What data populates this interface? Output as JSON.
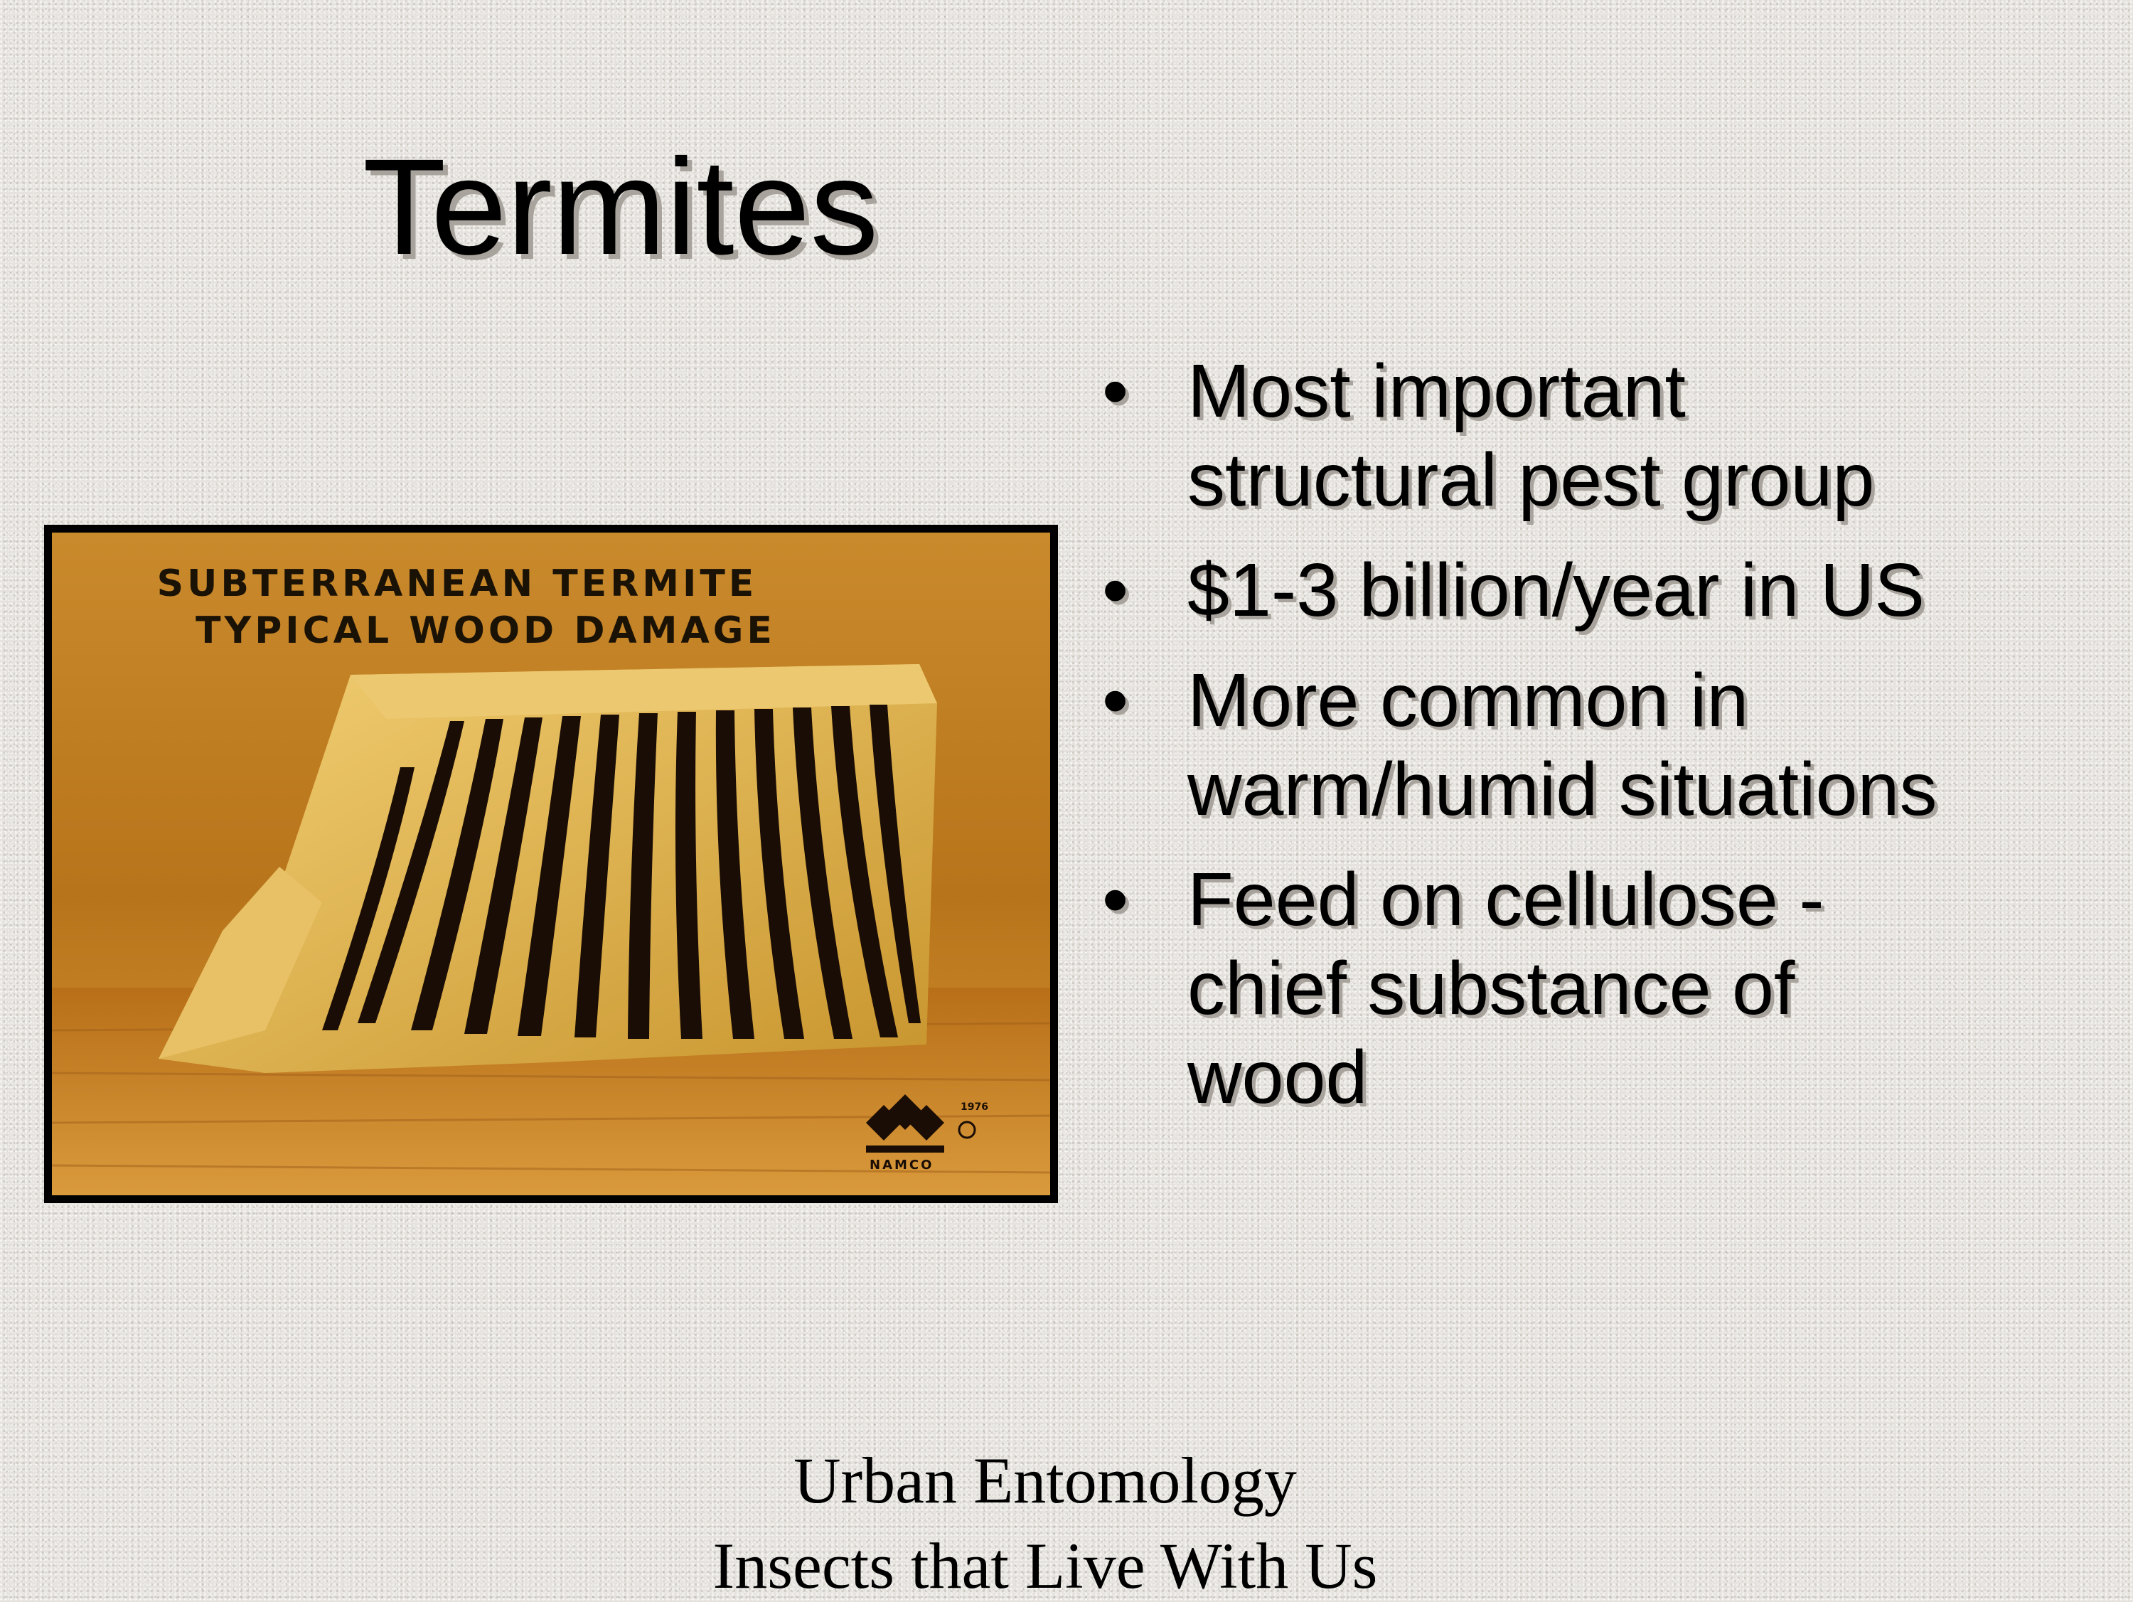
{
  "slide": {
    "title": "Termites",
    "photo": {
      "caption_line1": "SUBTERRANEAN TERMITE",
      "caption_line2": "TYPICAL WOOD DAMAGE",
      "logo_year": "1976",
      "logo_text": "NAMCO"
    },
    "bullet_symbol": "•",
    "bullets": [
      "Most important structural pest group",
      "$1-3 billion/year in US",
      "More common in warm/humid situations",
      "Feed on cellulose - chief substance of wood"
    ],
    "footer": {
      "line1": "Urban Entomology",
      "line2": "Insects that Live With Us"
    }
  }
}
